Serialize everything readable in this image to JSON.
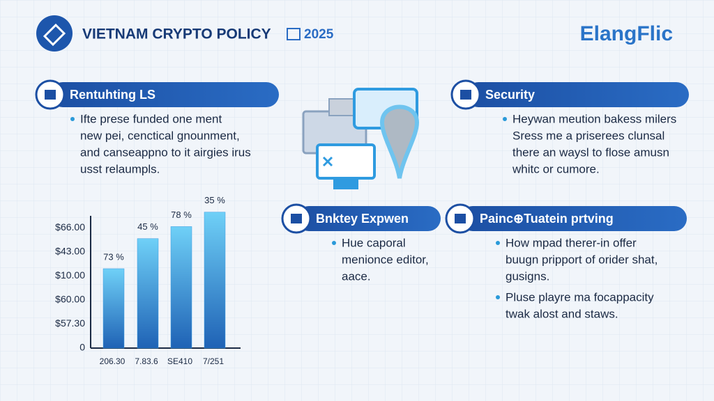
{
  "header": {
    "title": "VIETNAM CRYPTO POLICY",
    "year": "2025",
    "brand": "ElangFlic"
  },
  "sections": [
    {
      "title": "Rentuhting LS",
      "bullets": [
        [
          "Ifte prese funded one ment",
          "new pei, cenctical gnounment,",
          "and canseappno to it airgies irus",
          "usst relaumpls."
        ]
      ]
    },
    {
      "title": "Security",
      "bullets": [
        [
          "Heywan meution bakess milers",
          "Sress me a priserees clunsal",
          "there an waysl to flose amusn",
          "whitc or cumore."
        ]
      ]
    },
    {
      "title": "Bnktey Expwen",
      "bullets": [
        [
          "Hue caporal",
          "menionce editor,",
          "aace."
        ]
      ]
    },
    {
      "title": "Painc⊕Tuatein prtving",
      "bullets": [
        [
          "How mpad therer-in offer",
          "buugn pripport of orider shat,",
          "gusigns."
        ],
        [
          "Pluse playre ma focappacity",
          "twak alost and staws."
        ]
      ]
    }
  ],
  "chart_data": {
    "type": "bar",
    "categories": [
      "206.30",
      "7.83.6",
      "SE410",
      "7/251"
    ],
    "values": [
      3.3,
      4.55,
      5.05,
      5.65
    ],
    "annotations": [
      "73 %",
      "45 %",
      "78 %",
      "35 %"
    ],
    "ylim": [
      0,
      5.7
    ],
    "yticks": [
      {
        "value": 0,
        "label": "0"
      },
      {
        "value": 1,
        "label": "$57.30"
      },
      {
        "value": 2,
        "label": "$60.00"
      },
      {
        "value": 3,
        "label": "$10.00"
      },
      {
        "value": 4,
        "label": "$43.00"
      },
      {
        "value": 5,
        "label": "$66.00"
      }
    ],
    "color": "#3a9be0"
  }
}
